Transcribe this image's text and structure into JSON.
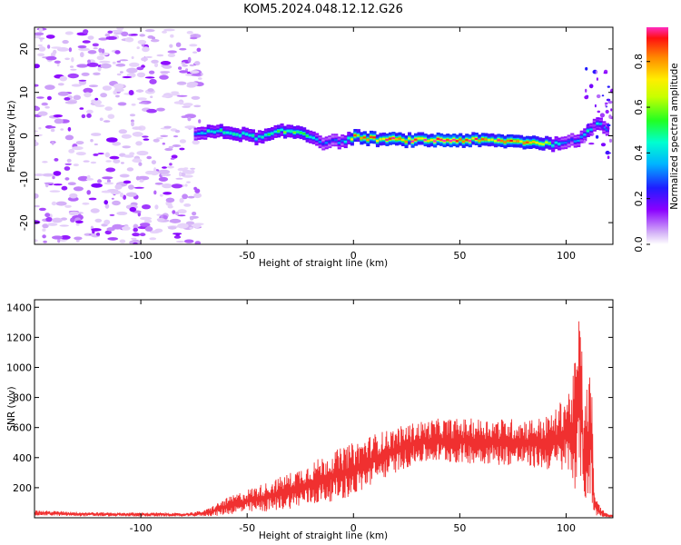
{
  "title": "KOM5.2024.048.12.12.G26",
  "chart_data": [
    {
      "type": "heatmap",
      "xlabel": "Height of straight line (km)",
      "ylabel": "Frequency (Hz)",
      "xlim": [
        -150,
        122
      ],
      "ylim": [
        -25,
        25
      ],
      "x_ticks": [
        -100,
        -50,
        0,
        50,
        100
      ],
      "y_ticks": [
        -20,
        -10,
        0,
        10,
        20
      ],
      "colorbar": {
        "label": "Normalized spectral amplitude",
        "range": [
          0,
          0.95
        ],
        "ticks": [
          0.0,
          0.2,
          0.4,
          0.6,
          0.8
        ]
      },
      "signal_track": {
        "x": [
          -75,
          -65,
          -55,
          -45,
          -35,
          -25,
          -15,
          -5,
          0,
          10,
          25,
          40,
          55,
          70,
          85,
          95,
          100,
          105,
          110,
          115,
          120
        ],
        "frequency": [
          0.5,
          1.0,
          0.5,
          -0.5,
          1.0,
          0.8,
          -1.5,
          -1.2,
          -0.2,
          -0.8,
          -1.0,
          -1.0,
          -1.0,
          -1.2,
          -1.5,
          -2.0,
          -1.0,
          -1.5,
          1.5,
          3.0,
          1.0
        ],
        "amplitude": [
          0.35,
          0.5,
          0.45,
          0.5,
          0.55,
          0.6,
          0.3,
          0.35,
          0.8,
          0.85,
          0.9,
          0.9,
          0.9,
          0.85,
          0.8,
          0.5,
          0.3,
          0.4,
          0.5,
          0.4,
          0.3
        ]
      },
      "noise_region_x": [
        -150,
        -72
      ],
      "grid": false
    },
    {
      "type": "line",
      "xlabel": "Height of straight line (km)",
      "ylabel": "SNR (v/v)",
      "xlim": [
        -150,
        122
      ],
      "ylim": [
        0,
        1450
      ],
      "x_ticks": [
        -100,
        -50,
        0,
        50,
        100
      ],
      "y_ticks": [
        200,
        400,
        600,
        800,
        1000,
        1200,
        1400
      ],
      "color": "#f03030",
      "series": [
        {
          "x": [
            -150,
            -130,
            -110,
            -90,
            -80,
            -70,
            -65,
            -60,
            -50,
            -40,
            -30,
            -20,
            -10,
            0,
            10,
            20,
            30,
            40,
            50,
            60,
            70,
            80,
            90,
            95,
            100,
            103,
            105,
            107,
            108,
            110,
            112,
            113,
            115,
            118,
            120
          ],
          "upper": [
            50,
            40,
            35,
            35,
            30,
            50,
            90,
            130,
            190,
            240,
            300,
            370,
            440,
            500,
            560,
            600,
            640,
            660,
            660,
            660,
            660,
            660,
            670,
            720,
            840,
            900,
            1200,
            1450,
            700,
            900,
            1000,
            200,
            100,
            40,
            20
          ],
          "lower": [
            15,
            10,
            8,
            8,
            8,
            10,
            10,
            20,
            30,
            40,
            60,
            80,
            110,
            140,
            230,
            300,
            360,
            370,
            360,
            360,
            350,
            340,
            320,
            310,
            300,
            250,
            150,
            250,
            100,
            120,
            60,
            20,
            10,
            5,
            5
          ]
        }
      ],
      "grid": false
    }
  ]
}
